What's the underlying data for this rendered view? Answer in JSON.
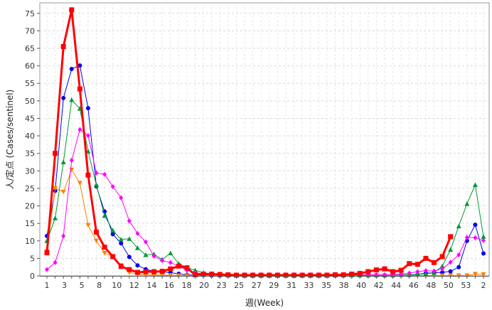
{
  "chart_data": {
    "type": "line",
    "xlabel": "週(Week)",
    "ylabel": "人/定点 (Cases/sentinel)",
    "ylim": [
      0,
      78
    ],
    "y_ticks": [
      0,
      5,
      10,
      15,
      20,
      25,
      30,
      35,
      40,
      45,
      50,
      55,
      60,
      65,
      70,
      75
    ],
    "x_tick_labels": [
      "1",
      "3",
      "5",
      "8",
      "10",
      "12",
      "14",
      "16",
      "18",
      "20",
      "23",
      "25",
      "27",
      "29",
      "31",
      "33",
      "35",
      "38",
      "40",
      "42",
      "44",
      "46",
      "48",
      "50",
      "53",
      "2"
    ],
    "grid": true,
    "legend": "none",
    "series": [
      {
        "color": "#0000ee",
        "marker": "circle",
        "line_width": 1,
        "values": [
          11.4,
          24.3,
          50.8,
          59.1,
          60.1,
          47.9,
          25.6,
          18.4,
          11.9,
          9.3,
          5.4,
          3.0,
          1.9,
          1.3,
          1.2,
          0.9,
          0.6,
          0.3,
          0.2,
          0.2,
          0.1,
          0.1,
          0.1,
          0.1,
          0.1,
          0.1,
          0.1,
          0.1,
          0.1,
          0.1,
          0.1,
          0.1,
          0.1,
          0.1,
          0.1,
          0.1,
          0.1,
          0.1,
          0.1,
          0.1,
          0.1,
          0.1,
          0.1,
          0.2,
          0.2,
          0.4,
          0.8,
          0.9,
          1.0,
          1.3,
          2.5,
          10.0,
          14.6,
          6.4
        ]
      },
      {
        "color": "#ff8000",
        "marker": "triangle-down",
        "line_width": 1,
        "values": [
          7.0,
          25.0,
          24.0,
          30.3,
          26.5,
          14.5,
          10.0,
          6.5,
          5.5,
          3.0,
          1.0,
          0.4,
          0.3,
          0.2,
          0.2,
          0.2,
          0.1,
          0.1,
          0.1,
          0.1,
          0.1,
          0.1,
          0.1,
          0.1,
          0.1,
          0.1,
          0.1,
          0.1,
          0.1,
          0.1,
          0.1,
          0.1,
          0.1,
          0.1,
          0.1,
          0.1,
          0.1,
          0.1,
          0.1,
          0.1,
          0.1,
          0.1,
          0.1,
          0.1,
          0.1,
          0.1,
          0.1,
          0.1,
          0.1,
          0.1,
          0.1,
          0.1,
          0.5,
          0.4
        ]
      },
      {
        "color": "#009933",
        "marker": "triangle-up",
        "line_width": 1,
        "values": [
          10.0,
          16.5,
          32.5,
          50.3,
          47.8,
          35.6,
          26.0,
          17.2,
          13.0,
          10.4,
          10.6,
          8.0,
          6.0,
          6.2,
          4.7,
          6.5,
          3.5,
          2.4,
          1.6,
          0.9,
          0.6,
          0.4,
          0.3,
          0.2,
          0.2,
          0.2,
          0.2,
          0.2,
          0.2,
          0.2,
          0.2,
          0.2,
          0.2,
          0.2,
          0.2,
          0.2,
          0.2,
          0.2,
          0.2,
          0.2,
          0.2,
          0.2,
          0.2,
          0.3,
          0.3,
          0.4,
          0.6,
          0.9,
          2.8,
          7.5,
          14.2,
          20.6,
          26.0,
          11.2
        ]
      },
      {
        "color": "#ff00ff",
        "marker": "diamond",
        "line_width": 1,
        "values": [
          1.8,
          3.8,
          11.4,
          33.0,
          41.8,
          40.1,
          29.4,
          29.0,
          25.5,
          22.3,
          15.7,
          12.1,
          9.7,
          5.6,
          4.4,
          3.8,
          2.8,
          1.6,
          0.9,
          0.6,
          0.5,
          0.4,
          0.3,
          0.3,
          0.3,
          0.3,
          0.3,
          0.3,
          0.3,
          0.3,
          0.3,
          0.3,
          0.3,
          0.3,
          0.3,
          0.3,
          0.3,
          0.3,
          0.3,
          0.3,
          0.3,
          0.3,
          0.3,
          0.5,
          0.8,
          1.2,
          1.5,
          1.4,
          2.0,
          3.9,
          6.0,
          11.0,
          10.9,
          10.1
        ]
      },
      {
        "color": "#ff0000",
        "marker": "square",
        "line_width": 3,
        "values": [
          6.6,
          35.0,
          65.5,
          76.0,
          53.4,
          28.8,
          12.5,
          8.2,
          5.5,
          2.7,
          1.8,
          1.0,
          1.2,
          1.2,
          1.3,
          2.0,
          2.8,
          2.3,
          0.3,
          0.5,
          0.5,
          0.4,
          0.3,
          0.2,
          0.2,
          0.2,
          0.2,
          0.2,
          0.2,
          0.2,
          0.2,
          0.2,
          0.2,
          0.2,
          0.2,
          0.3,
          0.3,
          0.5,
          0.7,
          1.2,
          1.7,
          2.0,
          1.2,
          1.6,
          3.5,
          3.3,
          5.0,
          3.8,
          5.5,
          11.2
        ]
      }
    ]
  }
}
